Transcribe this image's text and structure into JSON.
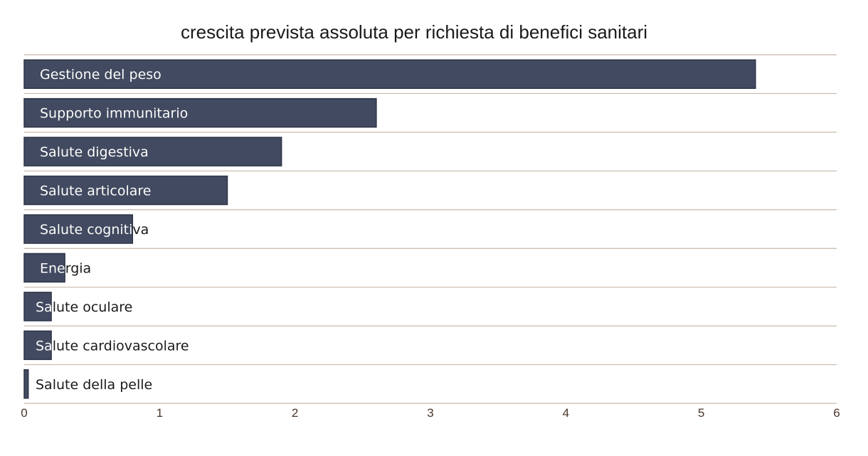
{
  "chart_data": {
    "type": "bar",
    "orientation": "horizontal",
    "title": "crescita prevista assoluta per richiesta di benefici sanitari",
    "xlabel": "",
    "ylabel": "",
    "categories": [
      "Gestione del peso",
      "Supporto immunitario",
      "Salute digestiva",
      "Salute articolare",
      "Salute cognitiva",
      "Energia",
      "Salute oculare",
      "Salute cardiovascolare",
      "Salute della pelle"
    ],
    "values": [
      5.4,
      2.6,
      1.9,
      1.5,
      0.8,
      0.3,
      0.2,
      0.2,
      0.03
    ],
    "xlim": [
      0,
      6
    ],
    "x_ticks": [
      "0",
      "1",
      "2",
      "3",
      "4",
      "5",
      "6"
    ],
    "grid": "horizontal separators between bars",
    "legend": "none",
    "bar_color": "#414a60",
    "grid_color": "#c8b8ab",
    "tick_color": "#4a3528",
    "label_color_on_bar": "#ffffff",
    "label_color_off_bar": "#1a1a1a"
  }
}
